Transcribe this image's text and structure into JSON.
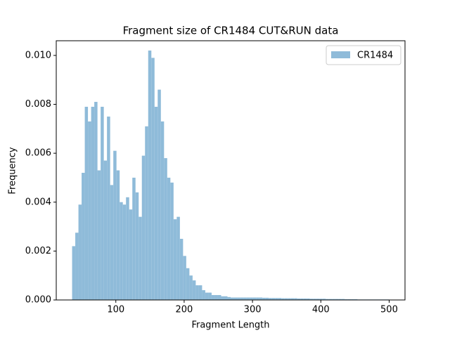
{
  "chart_data": {
    "type": "histogram",
    "title": "Fragment size of CR1484 CUT&RUN data",
    "x_label": "Fragment Length",
    "y_label": "Frequency",
    "legend_position": "upper right",
    "bins": [
      36,
      40.64,
      45.28,
      49.92,
      54.56,
      59.2,
      63.84,
      68.48,
      73.12,
      77.76,
      82.4,
      87.04,
      91.68,
      96.32,
      100.96,
      105.6,
      110.24,
      114.88,
      119.52,
      124.16,
      128.8,
      133.44,
      138.08,
      142.72,
      147.36,
      152,
      156.64,
      161.28,
      165.92,
      170.56,
      175.2,
      179.84,
      184.48,
      189.12,
      193.76,
      198.4,
      203.04,
      207.68,
      212.32,
      216.96,
      221.6,
      226.24,
      230.88,
      235.52,
      240.16,
      244.8,
      249.44,
      254.08,
      258.72,
      263.36,
      268,
      272.64,
      277.28,
      281.92,
      286.56,
      291.2,
      295.84,
      300.48,
      305.12,
      309.76,
      314.4,
      319.04,
      323.68,
      328.32,
      332.96,
      337.6,
      342.24,
      346.88,
      351.52,
      356.16,
      360.8,
      365.44,
      370.08,
      374.72,
      379.36,
      384,
      388.64,
      393.28,
      397.92,
      402.56,
      407.2,
      411.84,
      416.48,
      421.12,
      425.76,
      430.4,
      435.04,
      439.68,
      444.32,
      448.96,
      453.6,
      458.24,
      462.88,
      467.52,
      472.16,
      476.8,
      481.44,
      486.08,
      490.72,
      495.36,
      500
    ],
    "series": [
      {
        "name": "CR1484",
        "color": "#8fbbd9",
        "values": [
          0.0022,
          0.00275,
          0.0039,
          0.0052,
          0.0079,
          0.0073,
          0.0079,
          0.0081,
          0.0053,
          0.0079,
          0.0057,
          0.0075,
          0.0047,
          0.0061,
          0.0053,
          0.004,
          0.0039,
          0.0042,
          0.0037,
          0.005,
          0.0044,
          0.0034,
          0.0059,
          0.0071,
          0.0102,
          0.0099,
          0.0079,
          0.0086,
          0.0073,
          0.0058,
          0.005,
          0.0048,
          0.0033,
          0.0034,
          0.0025,
          0.0018,
          0.0013,
          0.001,
          0.0008,
          0.0006,
          0.0006,
          0.0004,
          0.0003,
          0.0003,
          0.0002,
          0.0002,
          0.0002,
          0.00015,
          0.00015,
          0.00012,
          0.0001,
          0.0001,
          0.0001,
          0.0001,
          0.0001,
          0.0001,
          0.0001,
          0.0001,
          0.0001,
          0.0001,
          9e-05,
          9e-05,
          8e-05,
          8e-05,
          8e-05,
          8e-05,
          7e-05,
          7e-05,
          7e-05,
          7e-05,
          7e-05,
          6e-05,
          6e-05,
          6e-05,
          6e-05,
          5e-05,
          5e-05,
          5e-05,
          5e-05,
          5e-05,
          4e-05,
          4e-05,
          4e-05,
          4e-05,
          4e-05,
          4e-05,
          3e-05,
          3e-05,
          3e-05,
          3e-05,
          2e-05,
          2e-05,
          2e-05,
          2e-05,
          2e-05,
          2e-05,
          2e-05,
          2e-05,
          2e-05,
          2e-05
        ]
      }
    ],
    "xlim": [
      12.8,
      523.2
    ],
    "ylim": [
      0,
      0.0106
    ],
    "xticks": [
      100,
      200,
      300,
      400,
      500
    ],
    "yticks": [
      {
        "value": 0,
        "label": "0.000"
      },
      {
        "value": 0.002,
        "label": "0.002"
      },
      {
        "value": 0.004,
        "label": "0.004"
      },
      {
        "value": 0.006,
        "label": "0.006"
      },
      {
        "value": 0.008,
        "label": "0.008"
      },
      {
        "value": 0.01,
        "label": "0.010"
      }
    ]
  }
}
